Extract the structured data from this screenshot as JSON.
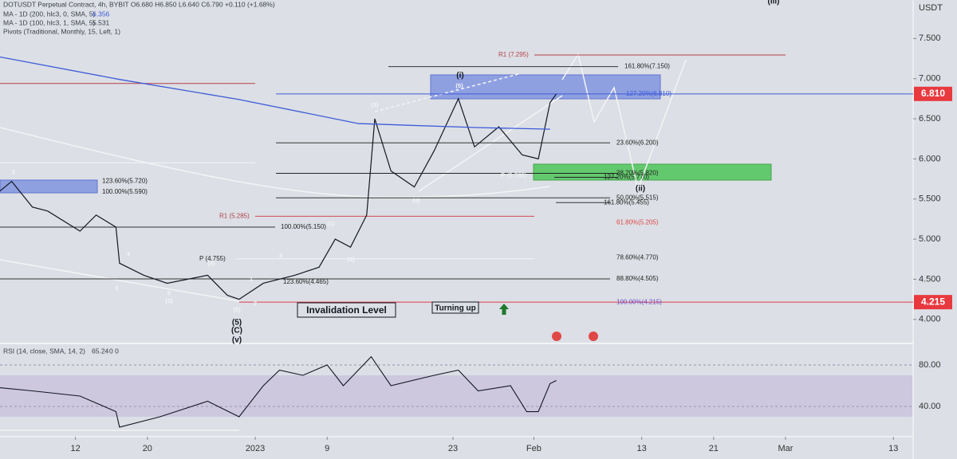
{
  "header": {
    "symbol_line": "DOTUSDT Perpetual Contract, 4h, BYBIT  O6.680  H6.850  L6.640  C6.790  +0.110 (+1.68%)",
    "ma200_line": "MA - 1D (200, hlc3, 0, SMA, 5)",
    "ma200_value": "6.356",
    "ma100_line": "MA - 1D (100, hlc3, 1, SMA, 5)",
    "ma100_value": "5.531",
    "pivots_line": "Pivots (Traditional, Monthly, 15, Left, 1)"
  },
  "chart_data": {
    "type": "line",
    "xlim": [
      -28.4,
      73.2
    ],
    "xticks": [
      {
        "value": -20,
        "label": "12"
      },
      {
        "value": -12,
        "label": "20"
      },
      {
        "value": 0,
        "label": "2023"
      },
      {
        "value": 8,
        "label": "9"
      },
      {
        "value": 22,
        "label": "23"
      },
      {
        "value": 31,
        "label": "Feb"
      },
      {
        "value": 43,
        "label": "13"
      },
      {
        "value": 51,
        "label": "21"
      },
      {
        "value": 59,
        "label": "Mar"
      },
      {
        "value": 71,
        "label": "13"
      }
    ],
    "ylabel": "USDT",
    "ylim": [
      3.71,
      7.98
    ],
    "yticks": [
      {
        "value": 4,
        "label": "4.000"
      },
      {
        "value": 4.5,
        "label": "4.500"
      },
      {
        "value": 5,
        "label": "5.000"
      },
      {
        "value": 5.5,
        "label": "5.500"
      },
      {
        "value": 6,
        "label": "6.000"
      },
      {
        "value": 6.5,
        "label": "6.500"
      },
      {
        "value": 7,
        "label": "7.000"
      },
      {
        "value": 7.5,
        "label": "7.500"
      }
    ],
    "x": [
      -28.4,
      -27.1,
      -24.8,
      -23.1,
      -19.5,
      -17.7,
      -15.5,
      -15.1,
      -12.4,
      -9.8,
      -5.3,
      -3.1,
      -1.8,
      0.9,
      4.4,
      7.1,
      8.9,
      10.6,
      12.4,
      13.3,
      15.1,
      17.7,
      19.9,
      22.6,
      24.4,
      27.1,
      29.7,
      31.5,
      32.8,
      33.5
    ],
    "series": [
      {
        "name": "DOTUSDT",
        "color": "#131722",
        "values": [
          5.6,
          5.72,
          5.4,
          5.35,
          5.1,
          5.3,
          5.15,
          4.7,
          4.55,
          4.45,
          4.55,
          4.3,
          4.25,
          4.45,
          4.55,
          4.65,
          5.0,
          4.9,
          5.3,
          6.5,
          5.85,
          5.65,
          6.1,
          6.75,
          6.15,
          6.4,
          6.05,
          6.0,
          6.7,
          6.81
        ]
      },
      {
        "name": "MA - 1D (200, hlc3, 0, SMA, 5)",
        "color": "#3d5bd9",
        "x": [
          -28.4,
          -15.1,
          -1.8,
          11.5,
          24.8,
          32.8
        ],
        "values": [
          7.27,
          6.99,
          6.74,
          6.44,
          6.39,
          6.37
        ]
      }
    ],
    "price_labels": [
      {
        "value": 6.81,
        "label": "6.810"
      },
      {
        "value": 4.215,
        "label": "4.215"
      }
    ],
    "levels": [
      {
        "label": "R1 (7.295)",
        "price": 7.295
      },
      {
        "label": "161.80%(7.150)",
        "price": 7.15
      },
      {
        "label": "127.20%(6.810)",
        "price": 6.81
      },
      {
        "price": 6.94
      },
      {
        "label": "23.60%(6.200)",
        "price": 6.2
      },
      {
        "price": 5.95
      },
      {
        "label": "38.20%(5.820)",
        "price": 5.82
      },
      {
        "label": "127.20%(5.770)",
        "price": 5.77
      },
      {
        "label": "50.00%(5.515)",
        "price": 5.515
      },
      {
        "label": "161.80%(5.455)",
        "price": 5.455
      },
      {
        "label": "R1 (5.285)",
        "price": 5.285
      },
      {
        "label": "61.80%(5.205)",
        "price": 5.205
      },
      {
        "label": "100.00%(5.150)",
        "price": 5.15
      },
      {
        "label": "P (4.755)",
        "price": 4.755
      },
      {
        "label": "78.60%(4.770)",
        "price": 4.77
      },
      {
        "label": "88.80%(4.505)",
        "price": 4.505
      },
      {
        "label": "123.60%(4.465)",
        "price": 4.465
      },
      {
        "label": "100.00%(4.215)",
        "price": 4.215
      },
      {
        "label": "123.60%(5.720)",
        "price": 5.72
      },
      {
        "label": "100.00%(5.590)",
        "price": 5.59
      },
      {
        "label": "P (5.785)",
        "price": 5.785
      }
    ],
    "wave_labels": [
      "(i)",
      "(ii)",
      "(iii)",
      "(3)",
      "(4)",
      "(5)",
      "2",
      "4",
      "3",
      "5",
      "(3)",
      "(4)",
      "3",
      "1",
      "2",
      "(5)",
      "(1)",
      "(2)",
      "(5)",
      "(C)",
      "(v)"
    ],
    "annotations": [
      "Invalidation Level",
      "Turning up"
    ]
  },
  "rsi": {
    "title": "RSI (14, close, SMA, 14, 2)",
    "value": "65.24",
    "extra": "0  0",
    "ylim": [
      10.8,
      101.5
    ],
    "yticks": [
      {
        "value": 40,
        "label": "40.00"
      },
      {
        "value": 80,
        "label": "80.00"
      }
    ],
    "x": [
      -28.4,
      -24.8,
      -19.5,
      -15.5,
      -15.1,
      -10.6,
      -5.3,
      -1.8,
      0.9,
      2.7,
      5.3,
      8.0,
      9.8,
      12.9,
      15.1,
      19.9,
      22.6,
      24.8,
      28.4,
      30.2,
      31.5,
      32.8,
      33.5
    ],
    "values": [
      58,
      55,
      50,
      35,
      20,
      30,
      45,
      30,
      60,
      75,
      70,
      80,
      60,
      88,
      60,
      70,
      75,
      55,
      60,
      35,
      35,
      62,
      65
    ],
    "color": "#131722"
  }
}
